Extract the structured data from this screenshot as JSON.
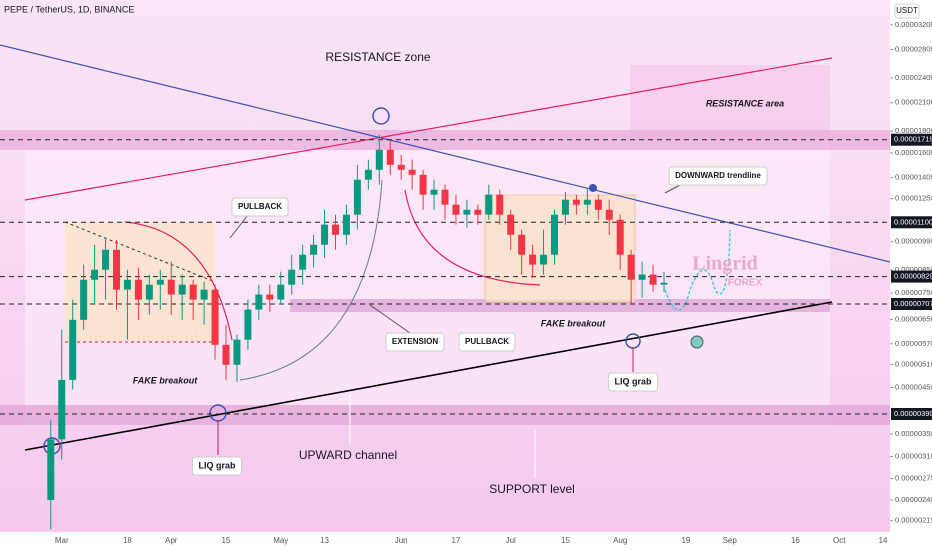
{
  "chart_data": {
    "type": "candlestick",
    "title": "PEPE / TetherUS, 1D, BINANCE",
    "currency": "USDT",
    "watermark": [
      "Lingrid",
      "FOREX"
    ],
    "annotations": [
      "RESISTANCE zone",
      "RESISTANCE area",
      "PULLBACK",
      "DOWNWARD trendline",
      "EXTENSION",
      "PULLBACK",
      "FAKE breakout",
      "FAKE breakout",
      "LIQ grab",
      "LIQ grab",
      "UPWARD channel",
      "SUPPORT level"
    ],
    "categories": [
      null,
      null,
      null,
      null,
      null,
      "Mar",
      null,
      null,
      null,
      null,
      null,
      "18",
      null,
      null,
      null,
      "Apr",
      null,
      null,
      null,
      null,
      "15",
      null,
      null,
      null,
      null,
      "May",
      null,
      null,
      null,
      "13",
      null,
      null,
      null,
      null,
      null,
      null,
      "Jun",
      null,
      null,
      null,
      null,
      "17",
      null,
      null,
      null,
      null,
      "Jul",
      null,
      null,
      null,
      null,
      "15",
      null,
      null,
      null,
      null,
      "Aug",
      null,
      null,
      null,
      null,
      null,
      "19",
      null,
      null,
      null,
      "Sep",
      null,
      null,
      null,
      null,
      null,
      "16",
      null,
      null,
      null,
      "Oct",
      null,
      null,
      null,
      "14"
    ],
    "open": [
      null,
      null,
      null,
      null,
      2.45e-06,
      3.4e-06,
      4.69e-06,
      6.49e-06,
      8.06e-06,
      8.51e-06,
      9.48e-06,
      7.64e-06,
      8.06e-06,
      7.24e-06,
      7.85e-06,
      8.06e-06,
      7.44e-06,
      7.85e-06,
      7.24e-06,
      7.64e-06,
      5.67e-06,
      5.09e-06,
      5.83e-06,
      6.86e-06,
      7.44e-06,
      7.24e-06,
      7.85e-06,
      8.51e-06,
      9.23e-06,
      9.74e-06,
      1.086e-05,
      1.028e-05,
      1.146e-05,
      1.385e-05,
      1.461e-05,
      1.628e-05,
      1.501e-05,
      1.461e-05,
      1.422e-05,
      1.277e-05,
      1.312e-05,
      1.21e-05,
      1.146e-05,
      1.177e-05,
      1.146e-05,
      1.277e-05,
      1.146e-05,
      1.028e-05,
      9.23e-06,
      8.75e-06,
      9.23e-06,
      1.146e-05,
      1.243e-05,
      1.21e-05,
      1.243e-05,
      1.177e-05,
      1.115e-05,
      9.23e-06,
      8.06e-06,
      8.29e-06,
      7.85e-06,
      null,
      null,
      null,
      null,
      null,
      null,
      null,
      null,
      null,
      null,
      null,
      null,
      null,
      null,
      null,
      null,
      null,
      null,
      null,
      null
    ],
    "high": [
      null,
      null,
      null,
      null,
      3.78e-06,
      6.15e-06,
      7.24e-06,
      8.75e-06,
      9.74e-06,
      1.012e-05,
      1.001e-05,
      8.51e-06,
      8.61e-06,
      8.29e-06,
      8.51e-06,
      8.89e-06,
      8.29e-06,
      8.06e-06,
      7.98e-06,
      7.85e-06,
      6.32e-06,
      5.99e-06,
      7.24e-06,
      7.85e-06,
      7.85e-06,
      8.42e-06,
      9.23e-06,
      9.74e-06,
      1.028e-05,
      1.177e-05,
      1.146e-05,
      1.21e-05,
      1.501e-05,
      1.543e-05,
      1.766e-05,
      1.719e-05,
      1.585e-05,
      1.543e-05,
      1.461e-05,
      1.385e-05,
      1.348e-05,
      1.277e-05,
      1.243e-05,
      1.21e-05,
      1.348e-05,
      1.312e-05,
      1.177e-05,
      1.057e-05,
      9.74e-06,
      1.057e-05,
      1.177e-05,
      1.297e-05,
      1.277e-05,
      1.325e-05,
      1.277e-05,
      1.243e-05,
      1.146e-05,
      9.48e-06,
      8.89e-06,
      8.75e-06,
      8.42e-06,
      null,
      null,
      null,
      null,
      null,
      null,
      null,
      null,
      null,
      null,
      null,
      null,
      null,
      null,
      null,
      null,
      null,
      null,
      null,
      null
    ],
    "low": [
      null,
      null,
      null,
      null,
      2.09e-06,
      3.05e-06,
      4.45e-06,
      6.15e-06,
      7.04e-06,
      7.24e-06,
      6.86e-06,
      5.83e-06,
      6.49e-06,
      6.67e-06,
      6.86e-06,
      6.67e-06,
      6.49e-06,
      6.49e-06,
      6.32e-06,
      5.23e-06,
      4.69e-06,
      4.64e-06,
      5.52e-06,
      6.49e-06,
      6.78e-06,
      7.04e-06,
      7.44e-06,
      7.85e-06,
      8.61e-06,
      9.07e-06,
      9.48e-06,
      9.74e-06,
      1.057e-05,
      1.312e-05,
      1.348e-05,
      1.422e-05,
      1.385e-05,
      1.312e-05,
      1.177e-05,
      1.177e-05,
      1.115e-05,
      1.086e-05,
      1.069e-05,
      1.086e-05,
      1.115e-05,
      1.086e-05,
      9.48e-06,
      8.29e-06,
      8.15e-06,
      8.29e-06,
      8.75e-06,
      1.086e-05,
      1.146e-05,
      1.146e-05,
      1.115e-05,
      1.028e-05,
      8.51e-06,
      7.04e-06,
      7.32e-06,
      7.56e-06,
      7.56e-06,
      null,
      null,
      null,
      null,
      null,
      null,
      null,
      null,
      null,
      null,
      null,
      null,
      null,
      null,
      null,
      null,
      null,
      null,
      null,
      null
    ],
    "close": [
      null,
      null,
      null,
      null,
      3.4e-06,
      4.69e-06,
      6.49e-06,
      8.06e-06,
      8.51e-06,
      9.48e-06,
      7.64e-06,
      8.06e-06,
      7.24e-06,
      7.85e-06,
      8.06e-06,
      7.44e-06,
      7.85e-06,
      7.24e-06,
      7.64e-06,
      5.67e-06,
      5.09e-06,
      5.83e-06,
      6.86e-06,
      7.44e-06,
      7.24e-06,
      7.85e-06,
      8.51e-06,
      9.23e-06,
      9.74e-06,
      1.086e-05,
      1.028e-05,
      1.146e-05,
      1.385e-05,
      1.461e-05,
      1.628e-05,
      1.501e-05,
      1.461e-05,
      1.422e-05,
      1.277e-05,
      1.312e-05,
      1.21e-05,
      1.146e-05,
      1.177e-05,
      1.146e-05,
      1.277e-05,
      1.146e-05,
      1.028e-05,
      9.23e-06,
      8.75e-06,
      9.23e-06,
      1.146e-05,
      1.243e-05,
      1.21e-05,
      1.243e-05,
      1.177e-05,
      1.115e-05,
      9.23e-06,
      8.06e-06,
      8.29e-06,
      7.85e-06,
      7.93e-06,
      null,
      null,
      null,
      null,
      null,
      null,
      null,
      null,
      null,
      null,
      null,
      null,
      null,
      null,
      null,
      null,
      null,
      null,
      null,
      null
    ],
    "up_color": "#089981",
    "down_color": "#f23645",
    "log_scale": true,
    "ylim": [
      2.06e-06,
      3.66e-05
    ],
    "yticks": [
      {
        "value": 3.2e-05,
        "label": "0.00003200"
      },
      {
        "value": 2.8e-05,
        "label": "0.00002800"
      },
      {
        "value": 2.4e-05,
        "label": "0.00002400"
      },
      {
        "value": 2.1e-05,
        "label": "0.00002100"
      },
      {
        "value": 1.8e-05,
        "label": "0.00001800"
      },
      {
        "value": 1.6e-05,
        "label": "0.00001600"
      },
      {
        "value": 1.4e-05,
        "label": "0.00001400"
      },
      {
        "value": 1.25e-05,
        "label": "0.00001250"
      },
      {
        "value": 9.9e-06,
        "label": "0.00000990"
      },
      {
        "value": 8.5e-06,
        "label": "0.00000850"
      },
      {
        "value": 7.5e-06,
        "label": "0.00000750"
      },
      {
        "value": 6.5e-06,
        "label": "0.00000650"
      },
      {
        "value": 5.7e-06,
        "label": "0.00000570"
      },
      {
        "value": 5.1e-06,
        "label": "0.00000510"
      },
      {
        "value": 4.5e-06,
        "label": "0.00000450"
      },
      {
        "value": 3.5e-06,
        "label": "0.00000350"
      },
      {
        "value": 3.1e-06,
        "label": "0.00000310"
      },
      {
        "value": 2.75e-06,
        "label": "0.00000275"
      },
      {
        "value": 2.45e-06,
        "label": "0.00000245"
      },
      {
        "value": 2.19e-06,
        "label": "0.00000219"
      }
    ],
    "price_lines": [
      {
        "value": 1.719e-05,
        "label": "0.00001719"
      },
      {
        "value": 1.1e-05,
        "label": "0.00001100"
      },
      {
        "value": 8.2e-06,
        "label": "0.00000820"
      },
      {
        "value": 7.07e-06,
        "label": "0.00000707"
      },
      {
        "value": 3.9e-06,
        "label": "0.00000390"
      }
    ]
  }
}
